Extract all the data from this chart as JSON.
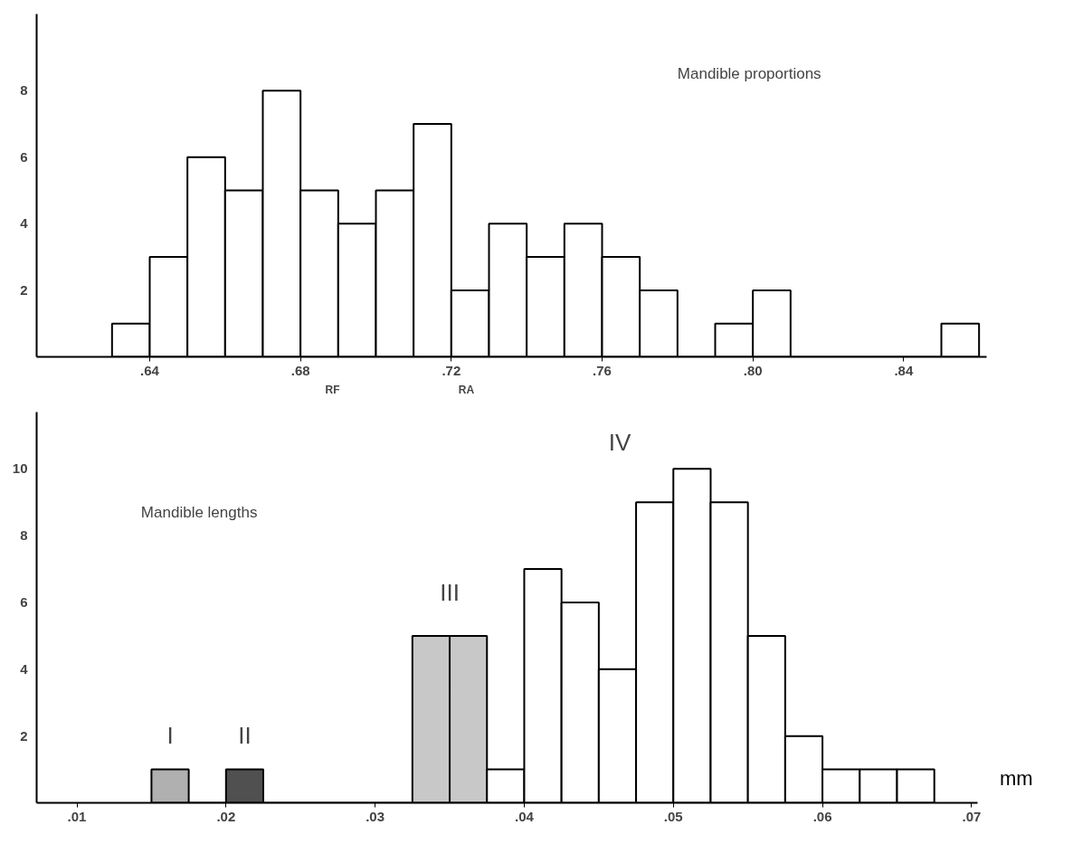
{
  "chart_data": [
    {
      "type": "histogram",
      "bins": [
        0.63,
        0.64,
        0.65,
        0.66,
        0.67,
        0.68,
        0.69,
        0.7,
        0.71,
        0.72,
        0.73,
        0.74,
        0.75,
        0.76,
        0.77,
        0.78,
        0.79,
        0.8,
        0.81,
        0.82,
        0.83,
        0.84,
        0.85,
        0.86
      ],
      "values": [
        1,
        3,
        6,
        5,
        8,
        5,
        4,
        5,
        7,
        2,
        4,
        3,
        4,
        3,
        2,
        0,
        1,
        2,
        0,
        0,
        0,
        0,
        1
      ],
      "color": "#ffffff",
      "xlim": [
        0.61,
        0.862
      ],
      "ylim": [
        0,
        10.3
      ],
      "xticks": [
        {
          "value": 0.64,
          "label": ".64"
        },
        {
          "value": 0.68,
          "label": ".68"
        },
        {
          "value": 0.72,
          "label": ".72"
        },
        {
          "value": 0.76,
          "label": ".76"
        },
        {
          "value": 0.8,
          "label": ".80"
        },
        {
          "value": 0.84,
          "label": ".84"
        }
      ],
      "yticks": [
        2,
        4,
        6,
        8
      ],
      "annotations": [
        "Mandible proportions",
        "RF",
        "RA"
      ],
      "grid": false
    },
    {
      "type": "histogram",
      "bins": [
        0.015,
        0.0175,
        0.02,
        0.0225,
        0.025,
        0.0275,
        0.03,
        0.0325,
        0.035,
        0.0375,
        0.04,
        0.0425,
        0.045,
        0.0475,
        0.05,
        0.0525,
        0.055,
        0.0575,
        0.06,
        0.0625,
        0.065,
        0.0675
      ],
      "values": [
        1,
        0,
        1,
        0,
        0,
        0,
        0,
        5,
        5,
        1,
        7,
        6,
        4,
        9,
        10,
        9,
        5,
        2,
        1,
        1,
        1
      ],
      "colors": [
        "#b0b0b0",
        "#ffffff",
        "#505050",
        "#ffffff",
        "#ffffff",
        "#ffffff",
        "#ffffff",
        "#c8c8c8",
        "#c8c8c8",
        "#ffffff",
        "#ffffff",
        "#ffffff",
        "#ffffff",
        "#ffffff",
        "#ffffff",
        "#ffffff",
        "#ffffff",
        "#ffffff",
        "#ffffff",
        "#ffffff",
        "#ffffff"
      ],
      "xlim": [
        0.0073,
        0.0704
      ],
      "ylim": [
        0,
        11.7
      ],
      "xticks": [
        {
          "value": 0.01,
          "label": ".01"
        },
        {
          "value": 0.02,
          "label": ".02"
        },
        {
          "value": 0.03,
          "label": ".03"
        },
        {
          "value": 0.04,
          "label": ".04"
        },
        {
          "value": 0.05,
          "label": ".05"
        },
        {
          "value": 0.06,
          "label": ".06"
        },
        {
          "value": 0.07,
          "label": ".07"
        }
      ],
      "yticks": [
        2,
        4,
        6,
        8,
        10
      ],
      "xlabel": "mm",
      "annotations": [
        "Mandible lengths",
        "I",
        "II",
        "III",
        "IV"
      ],
      "grid": false
    }
  ]
}
